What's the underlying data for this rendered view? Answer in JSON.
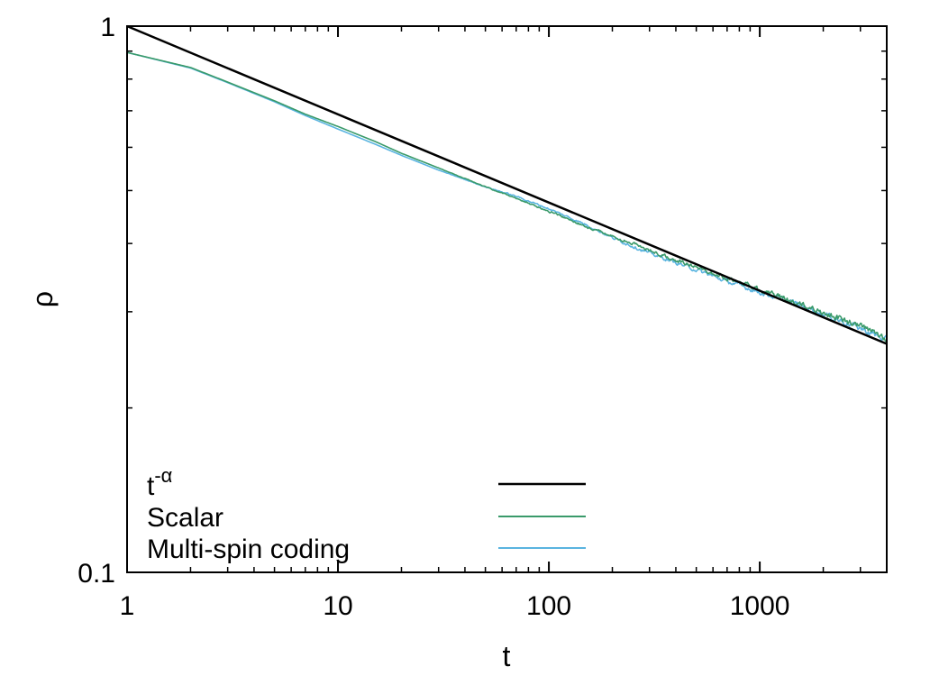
{
  "chart_data": {
    "type": "line",
    "xscale": "log",
    "yscale": "log",
    "xlim": [
      1,
      4000
    ],
    "ylim": [
      0.1,
      1
    ],
    "xlabel": "t",
    "ylabel": "ρ",
    "x_ticks": [
      {
        "value": 1,
        "label": "1"
      },
      {
        "value": 10,
        "label": "10"
      },
      {
        "value": 100,
        "label": "100"
      },
      {
        "value": 1000,
        "label": "1000"
      }
    ],
    "y_ticks": [
      {
        "value": 0.1,
        "label": "0.1"
      },
      {
        "value": 1,
        "label": "1"
      }
    ],
    "grid": false,
    "legend_position": "bottom-left",
    "series": [
      {
        "name": "t^-α",
        "label_base": "t",
        "label_sup": "-α",
        "color": "#000000",
        "style": "straight power law",
        "points": [
          [
            1,
            1.0
          ],
          [
            4000,
            0.262
          ]
        ]
      },
      {
        "name": "Scalar",
        "color": "#3a9a6a",
        "style": "noisy",
        "points": [
          [
            1,
            0.895
          ],
          [
            2,
            0.84
          ],
          [
            3,
            0.79
          ],
          [
            5,
            0.73
          ],
          [
            7,
            0.69
          ],
          [
            10,
            0.655
          ],
          [
            15,
            0.615
          ],
          [
            20,
            0.585
          ],
          [
            30,
            0.55
          ],
          [
            50,
            0.508
          ],
          [
            70,
            0.484
          ],
          [
            100,
            0.458
          ],
          [
            150,
            0.43
          ],
          [
            200,
            0.413
          ],
          [
            300,
            0.389
          ],
          [
            500,
            0.362
          ],
          [
            700,
            0.346
          ],
          [
            1000,
            0.33
          ],
          [
            1500,
            0.311
          ],
          [
            2000,
            0.299
          ],
          [
            3000,
            0.282
          ],
          [
            4000,
            0.268
          ]
        ]
      },
      {
        "name": "Multi-spin coding",
        "color": "#5ab4e0",
        "style": "noisy",
        "points": [
          [
            1,
            0.895
          ],
          [
            2,
            0.838
          ],
          [
            3,
            0.788
          ],
          [
            5,
            0.727
          ],
          [
            7,
            0.686
          ],
          [
            10,
            0.648
          ],
          [
            15,
            0.608
          ],
          [
            20,
            0.58
          ],
          [
            30,
            0.545
          ],
          [
            50,
            0.508
          ],
          [
            70,
            0.488
          ],
          [
            100,
            0.463
          ],
          [
            150,
            0.433
          ],
          [
            200,
            0.41
          ],
          [
            300,
            0.384
          ],
          [
            500,
            0.358
          ],
          [
            700,
            0.341
          ],
          [
            1000,
            0.326
          ],
          [
            1500,
            0.31
          ],
          [
            2000,
            0.297
          ],
          [
            3000,
            0.28
          ],
          [
            4000,
            0.266
          ]
        ]
      }
    ]
  }
}
